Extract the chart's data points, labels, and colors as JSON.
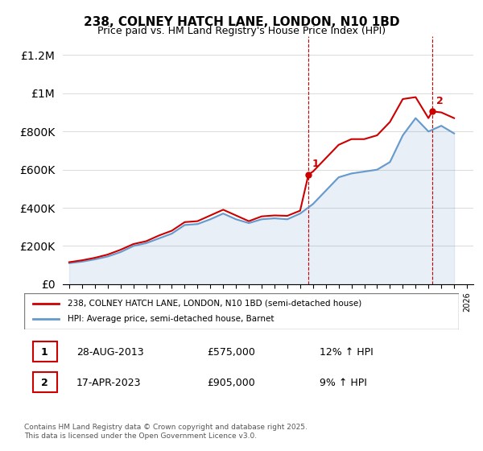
{
  "title": "238, COLNEY HATCH LANE, LONDON, N10 1BD",
  "subtitle": "Price paid vs. HM Land Registry's House Price Index (HPI)",
  "footnote": "Contains HM Land Registry data © Crown copyright and database right 2025.\nThis data is licensed under the Open Government Licence v3.0.",
  "legend_red": "238, COLNEY HATCH LANE, LONDON, N10 1BD (semi-detached house)",
  "legend_blue": "HPI: Average price, semi-detached house, Barnet",
  "transaction1_label": "1",
  "transaction1_date": "28-AUG-2013",
  "transaction1_price": "£575,000",
  "transaction1_hpi": "12% ↑ HPI",
  "transaction2_label": "2",
  "transaction2_date": "17-APR-2023",
  "transaction2_price": "£905,000",
  "transaction2_hpi": "9% ↑ HPI",
  "red_color": "#cc0000",
  "blue_color": "#6699cc",
  "dashed_line_color": "#cc0000",
  "background_color": "#ffffff",
  "grid_color": "#dddddd",
  "ylim": [
    0,
    1300000
  ],
  "yticks": [
    0,
    200000,
    400000,
    600000,
    800000,
    1000000,
    1200000
  ],
  "x_start_year": 1995,
  "x_end_year": 2026,
  "transaction1_year": 2013.65,
  "transaction2_year": 2023.29,
  "hpi_years": [
    1995,
    1996,
    1997,
    1998,
    1999,
    2000,
    2001,
    2002,
    2003,
    2004,
    2005,
    2006,
    2007,
    2008,
    2009,
    2010,
    2011,
    2012,
    2013,
    2014,
    2015,
    2016,
    2017,
    2018,
    2019,
    2020,
    2021,
    2022,
    2023,
    2024,
    2025
  ],
  "hpi_values": [
    110000,
    118000,
    130000,
    145000,
    168000,
    200000,
    215000,
    240000,
    265000,
    310000,
    315000,
    340000,
    370000,
    340000,
    320000,
    340000,
    345000,
    340000,
    370000,
    420000,
    490000,
    560000,
    580000,
    590000,
    600000,
    640000,
    780000,
    870000,
    800000,
    830000,
    790000
  ],
  "price_paid_years": [
    1995,
    1996,
    1997,
    1998,
    1999,
    2000,
    2001,
    2002,
    2003,
    2004,
    2005,
    2006,
    2007,
    2008,
    2009,
    2010,
    2011,
    2012,
    2013,
    2013.65,
    2014,
    2015,
    2016,
    2017,
    2018,
    2019,
    2020,
    2021,
    2022,
    2023,
    2023.29,
    2024,
    2025
  ],
  "price_paid_values": [
    115000,
    125000,
    138000,
    155000,
    180000,
    210000,
    225000,
    255000,
    280000,
    325000,
    330000,
    360000,
    390000,
    360000,
    330000,
    355000,
    360000,
    358000,
    385000,
    575000,
    590000,
    660000,
    730000,
    760000,
    760000,
    780000,
    850000,
    970000,
    980000,
    870000,
    905000,
    900000,
    870000
  ]
}
